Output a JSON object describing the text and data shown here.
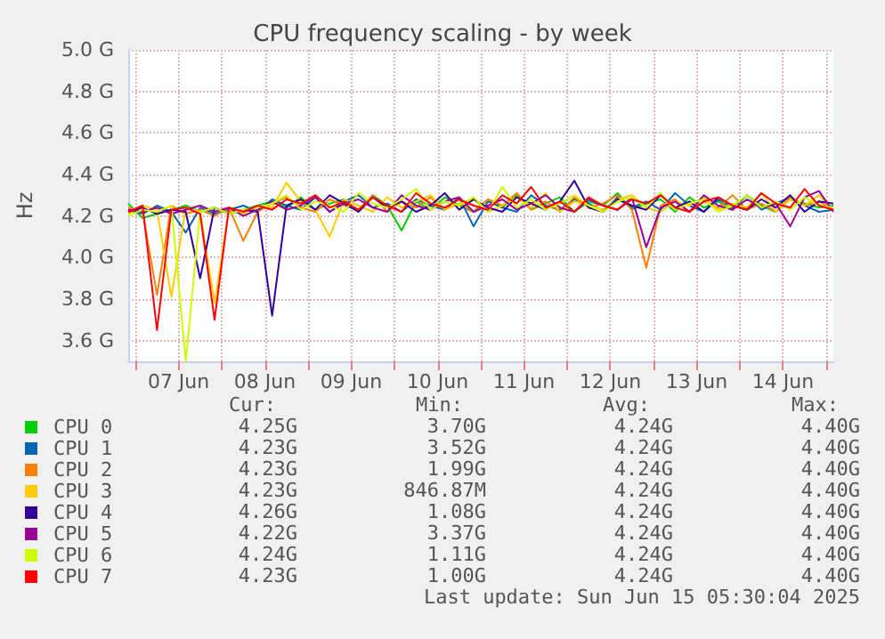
{
  "chart_data": {
    "type": "line",
    "title": "CPU frequency scaling - by week",
    "ylabel": "Hz",
    "x": [
      "2025-06-06T22:00",
      "2025-06-07T02:00",
      "2025-06-07T06:00",
      "2025-06-07T10:00",
      "2025-06-07T14:00",
      "2025-06-07T18:00",
      "2025-06-07T22:00",
      "2025-06-08T02:00",
      "2025-06-08T06:00",
      "2025-06-08T10:00",
      "2025-06-08T14:00",
      "2025-06-08T18:00",
      "2025-06-08T22:00",
      "2025-06-09T02:00",
      "2025-06-09T06:00",
      "2025-06-09T10:00",
      "2025-06-09T14:00",
      "2025-06-09T18:00",
      "2025-06-09T22:00",
      "2025-06-10T02:00",
      "2025-06-10T06:00",
      "2025-06-10T10:00",
      "2025-06-10T14:00",
      "2025-06-10T18:00",
      "2025-06-10T22:00",
      "2025-06-11T02:00",
      "2025-06-11T06:00",
      "2025-06-11T10:00",
      "2025-06-11T14:00",
      "2025-06-11T18:00",
      "2025-06-11T22:00",
      "2025-06-12T02:00",
      "2025-06-12T06:00",
      "2025-06-12T10:00",
      "2025-06-12T14:00",
      "2025-06-12T18:00",
      "2025-06-12T22:00",
      "2025-06-13T02:00",
      "2025-06-13T06:00",
      "2025-06-13T10:00",
      "2025-06-13T14:00",
      "2025-06-13T18:00",
      "2025-06-13T22:00",
      "2025-06-14T02:00",
      "2025-06-14T06:00",
      "2025-06-14T10:00",
      "2025-06-14T14:00",
      "2025-06-14T18:00",
      "2025-06-14T22:00",
      "2025-06-15T02:00"
    ],
    "series": [
      {
        "name": "CPU 0",
        "color": "#00cc00",
        "values": [
          4.26,
          4.19,
          4.21,
          4.23,
          4.25,
          4.22,
          4.24,
          4.21,
          4.23,
          4.25,
          4.27,
          4.24,
          4.29,
          4.23,
          4.26,
          4.28,
          4.22,
          4.3,
          4.25,
          4.13,
          4.27,
          4.23,
          4.29,
          4.25,
          4.22,
          4.28,
          4.24,
          4.3,
          4.23,
          4.26,
          4.29,
          4.22,
          4.27,
          4.25,
          4.31,
          4.23,
          4.26,
          4.28,
          4.22,
          4.29,
          4.24,
          4.27,
          4.23,
          4.3,
          4.25,
          4.22,
          4.28,
          4.26,
          4.24,
          4.25
        ]
      },
      {
        "name": "CPU 1",
        "color": "#0066b3",
        "values": [
          4.23,
          4.21,
          4.25,
          4.22,
          4.12,
          4.24,
          4.21,
          4.23,
          4.25,
          4.22,
          4.28,
          4.25,
          4.23,
          4.29,
          4.22,
          4.27,
          4.3,
          4.24,
          4.26,
          4.22,
          4.28,
          4.25,
          4.23,
          4.29,
          4.15,
          4.27,
          4.24,
          4.22,
          4.3,
          4.25,
          4.23,
          4.28,
          4.26,
          4.22,
          4.29,
          4.24,
          4.27,
          4.23,
          4.31,
          4.25,
          4.22,
          4.28,
          4.24,
          4.3,
          4.23,
          4.26,
          4.29,
          4.25,
          4.22,
          4.23
        ]
      },
      {
        "name": "CPU 2",
        "color": "#ff8000",
        "values": [
          4.24,
          4.22,
          3.82,
          4.25,
          4.21,
          4.23,
          4.2,
          4.24,
          4.08,
          4.22,
          4.26,
          4.29,
          4.24,
          4.22,
          4.28,
          4.25,
          4.23,
          4.3,
          4.22,
          4.27,
          4.24,
          4.29,
          4.23,
          4.26,
          4.22,
          4.28,
          4.25,
          4.31,
          4.23,
          4.27,
          4.22,
          4.29,
          4.24,
          4.26,
          4.3,
          4.23,
          3.95,
          4.25,
          4.28,
          4.22,
          4.27,
          4.24,
          4.3,
          4.23,
          4.26,
          4.22,
          4.29,
          4.25,
          4.27,
          4.23
        ]
      },
      {
        "name": "CPU 3",
        "color": "#ffcc00",
        "values": [
          4.21,
          4.25,
          4.23,
          3.81,
          4.24,
          4.22,
          3.78,
          4.23,
          4.21,
          4.25,
          4.24,
          4.36,
          4.27,
          4.23,
          4.1,
          4.28,
          4.25,
          4.22,
          4.29,
          4.24,
          4.27,
          4.3,
          4.23,
          4.26,
          4.28,
          4.22,
          4.25,
          4.29,
          4.24,
          4.31,
          4.22,
          4.27,
          4.25,
          4.23,
          4.28,
          4.3,
          4.24,
          4.22,
          4.27,
          4.25,
          4.29,
          4.23,
          4.26,
          4.24,
          4.31,
          4.22,
          4.28,
          4.25,
          4.3,
          4.23
        ]
      },
      {
        "name": "CPU 4",
        "color": "#330099",
        "values": [
          4.22,
          4.24,
          4.21,
          4.23,
          4.22,
          3.9,
          4.24,
          4.21,
          4.23,
          4.22,
          3.72,
          4.25,
          4.28,
          4.23,
          4.3,
          4.26,
          4.22,
          4.29,
          4.24,
          4.27,
          4.22,
          4.25,
          4.31,
          4.23,
          4.28,
          4.24,
          4.22,
          4.29,
          4.26,
          4.23,
          4.27,
          4.37,
          4.24,
          4.22,
          4.28,
          4.25,
          4.23,
          4.3,
          4.24,
          4.27,
          4.22,
          4.29,
          4.25,
          4.23,
          4.28,
          4.24,
          4.3,
          4.22,
          4.27,
          4.26
        ]
      },
      {
        "name": "CPU 5",
        "color": "#990099",
        "values": [
          4.23,
          4.22,
          4.24,
          4.21,
          4.23,
          4.25,
          4.22,
          4.24,
          4.2,
          4.23,
          4.27,
          4.23,
          4.25,
          4.29,
          4.22,
          4.26,
          4.28,
          4.24,
          4.22,
          4.3,
          4.25,
          4.23,
          4.27,
          4.29,
          4.22,
          4.25,
          4.28,
          4.23,
          4.26,
          4.3,
          4.24,
          4.22,
          4.28,
          4.25,
          4.23,
          4.29,
          4.05,
          4.24,
          4.27,
          4.22,
          4.3,
          4.25,
          4.23,
          4.28,
          4.24,
          4.26,
          4.15,
          4.29,
          4.32,
          4.22
        ]
      },
      {
        "name": "CPU 6",
        "color": "#ccff00",
        "values": [
          4.2,
          4.23,
          4.22,
          4.25,
          3.5,
          4.22,
          4.24,
          4.21,
          4.23,
          4.24,
          4.26,
          4.3,
          4.23,
          4.27,
          4.25,
          4.22,
          4.31,
          4.26,
          4.24,
          4.28,
          4.33,
          4.23,
          4.27,
          4.25,
          4.29,
          4.22,
          4.34,
          4.24,
          4.28,
          4.23,
          4.26,
          4.3,
          4.25,
          4.22,
          4.27,
          4.29,
          4.24,
          4.31,
          4.23,
          4.26,
          4.28,
          4.22,
          4.25,
          4.3,
          4.24,
          4.27,
          4.23,
          4.29,
          4.25,
          4.24
        ]
      },
      {
        "name": "CPU 7",
        "color": "#ff0000",
        "values": [
          4.22,
          4.25,
          3.65,
          4.23,
          4.24,
          4.21,
          3.7,
          4.24,
          4.22,
          4.25,
          4.23,
          4.28,
          4.26,
          4.3,
          4.24,
          4.27,
          4.23,
          4.29,
          4.25,
          4.22,
          4.31,
          4.26,
          4.24,
          4.28,
          4.25,
          4.23,
          4.3,
          4.26,
          4.34,
          4.24,
          4.27,
          4.22,
          4.29,
          4.25,
          4.23,
          4.28,
          4.26,
          4.3,
          4.24,
          4.22,
          4.27,
          4.29,
          4.25,
          4.23,
          4.31,
          4.26,
          4.24,
          4.33,
          4.25,
          4.23
        ]
      }
    ],
    "xlim": [
      "2025-06-06T22:00",
      "2025-06-15T02:00"
    ],
    "xticks": [
      {
        "value": "2025-06-07T00:00",
        "label": null
      },
      {
        "value": "2025-06-07T12:00",
        "label": "07 Jun"
      },
      {
        "value": "2025-06-08T00:00",
        "label": null
      },
      {
        "value": "2025-06-08T12:00",
        "label": "08 Jun"
      },
      {
        "value": "2025-06-09T00:00",
        "label": null
      },
      {
        "value": "2025-06-09T12:00",
        "label": "09 Jun"
      },
      {
        "value": "2025-06-10T00:00",
        "label": null
      },
      {
        "value": "2025-06-10T12:00",
        "label": "10 Jun"
      },
      {
        "value": "2025-06-11T00:00",
        "label": null
      },
      {
        "value": "2025-06-11T12:00",
        "label": "11 Jun"
      },
      {
        "value": "2025-06-12T00:00",
        "label": null
      },
      {
        "value": "2025-06-12T12:00",
        "label": "12 Jun"
      },
      {
        "value": "2025-06-13T00:00",
        "label": null
      },
      {
        "value": "2025-06-13T12:00",
        "label": "13 Jun"
      },
      {
        "value": "2025-06-14T00:00",
        "label": null
      },
      {
        "value": "2025-06-14T12:00",
        "label": "14 Jun"
      },
      {
        "value": "2025-06-15T00:00",
        "label": null
      }
    ],
    "ylim": [
      3.5,
      5.0
    ],
    "yticks": [
      {
        "value": 3.6,
        "label": "3.6 G"
      },
      {
        "value": 3.8,
        "label": "3.8 G"
      },
      {
        "value": 4.0,
        "label": "4.0 G"
      },
      {
        "value": 4.2,
        "label": "4.2 G"
      },
      {
        "value": 4.4,
        "label": "4.4 G"
      },
      {
        "value": 4.6,
        "label": "4.6 G"
      },
      {
        "value": 4.8,
        "label": "4.8 G"
      },
      {
        "value": 5.0,
        "label": "5.0 G"
      }
    ],
    "grid": true,
    "legend": "bottom left",
    "marker": "none",
    "line_style": "solid",
    "annotations": [
      "Cur:",
      "Min:",
      "Avg:",
      "Max:",
      "4.25G",
      "3.70G",
      "4.24G",
      "4.40G",
      "4.23G",
      "3.52G",
      "4.24G",
      "4.40G",
      "4.23G",
      "1.99G",
      "4.24G",
      "4.40G",
      "4.23G",
      "846.87M",
      "4.24G",
      "4.40G",
      "4.26G",
      "1.08G",
      "4.24G",
      "4.40G",
      "4.22G",
      "3.37G",
      "4.24G",
      "4.40G",
      "4.24G",
      "1.11G",
      "4.24G",
      "4.40G",
      "4.23G",
      "1.00G",
      "4.24G",
      "4.40G",
      "Last update: Sun Jun 15 05:30:04 2025"
    ]
  }
}
